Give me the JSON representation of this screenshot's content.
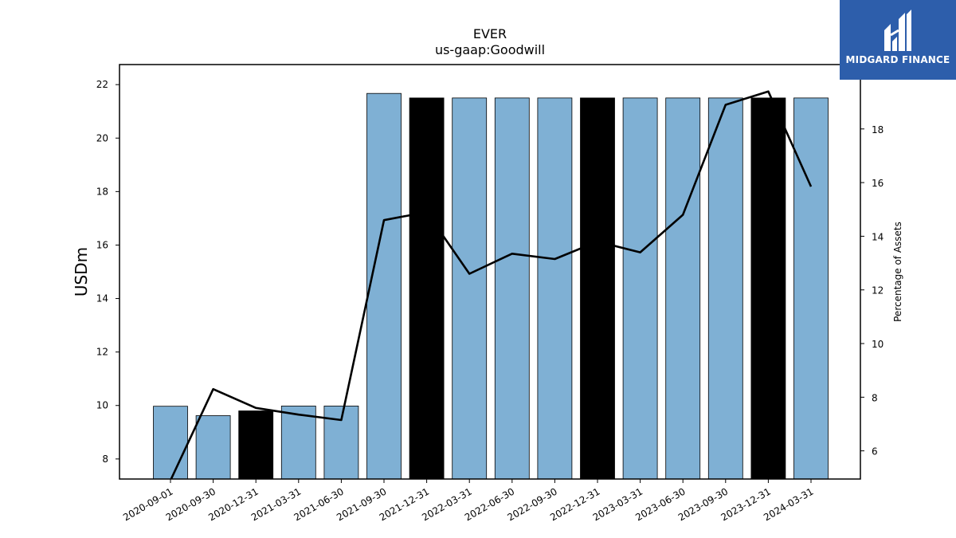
{
  "chart_data": {
    "type": "bar",
    "title": "EVER",
    "subtitle": "us-gaap:Goodwill",
    "ylabel": "USDm",
    "y2label": "Percentage of Assets",
    "categories": [
      "2020-09-01",
      "2020-09-30",
      "2020-12-31",
      "2021-03-31",
      "2021-06-30",
      "2021-09-30",
      "2021-12-31",
      "2022-03-31",
      "2022-06-30",
      "2022-09-30",
      "2022-12-31",
      "2023-03-31",
      "2023-06-30",
      "2023-09-30",
      "2023-12-31",
      "2024-03-31"
    ],
    "series": [
      {
        "type": "bar",
        "axis": "left",
        "values": [
          9.97,
          9.62,
          9.8,
          9.98,
          9.98,
          21.67,
          21.5,
          21.5,
          21.5,
          21.5,
          21.5,
          21.5,
          21.5,
          21.5,
          21.5,
          21.5
        ],
        "colors": [
          "#7fb0d4",
          "#7fb0d4",
          "#000000",
          "#7fb0d4",
          "#7fb0d4",
          "#7fb0d4",
          "#000000",
          "#7fb0d4",
          "#7fb0d4",
          "#7fb0d4",
          "#000000",
          "#7fb0d4",
          "#7fb0d4",
          "#7fb0d4",
          "#000000",
          "#7fb0d4"
        ]
      },
      {
        "type": "line",
        "axis": "right",
        "values": [
          4.9,
          8.3,
          7.6,
          7.35,
          7.15,
          14.6,
          14.9,
          12.6,
          13.35,
          13.15,
          13.8,
          13.4,
          14.8,
          18.9,
          19.4,
          15.85
        ],
        "color": "#000000"
      }
    ],
    "ylim": [
      7.25,
      22.75
    ],
    "y2lim": [
      4.95,
      20.4
    ],
    "yticks": [
      8,
      10,
      12,
      14,
      16,
      18,
      20,
      22
    ],
    "y2ticks": [
      6,
      8,
      10,
      12,
      14,
      16,
      18
    ],
    "grid": false,
    "legend": "none"
  },
  "logo": {
    "text": "MIDGARD FINANCE",
    "color": "#2d5eab"
  }
}
